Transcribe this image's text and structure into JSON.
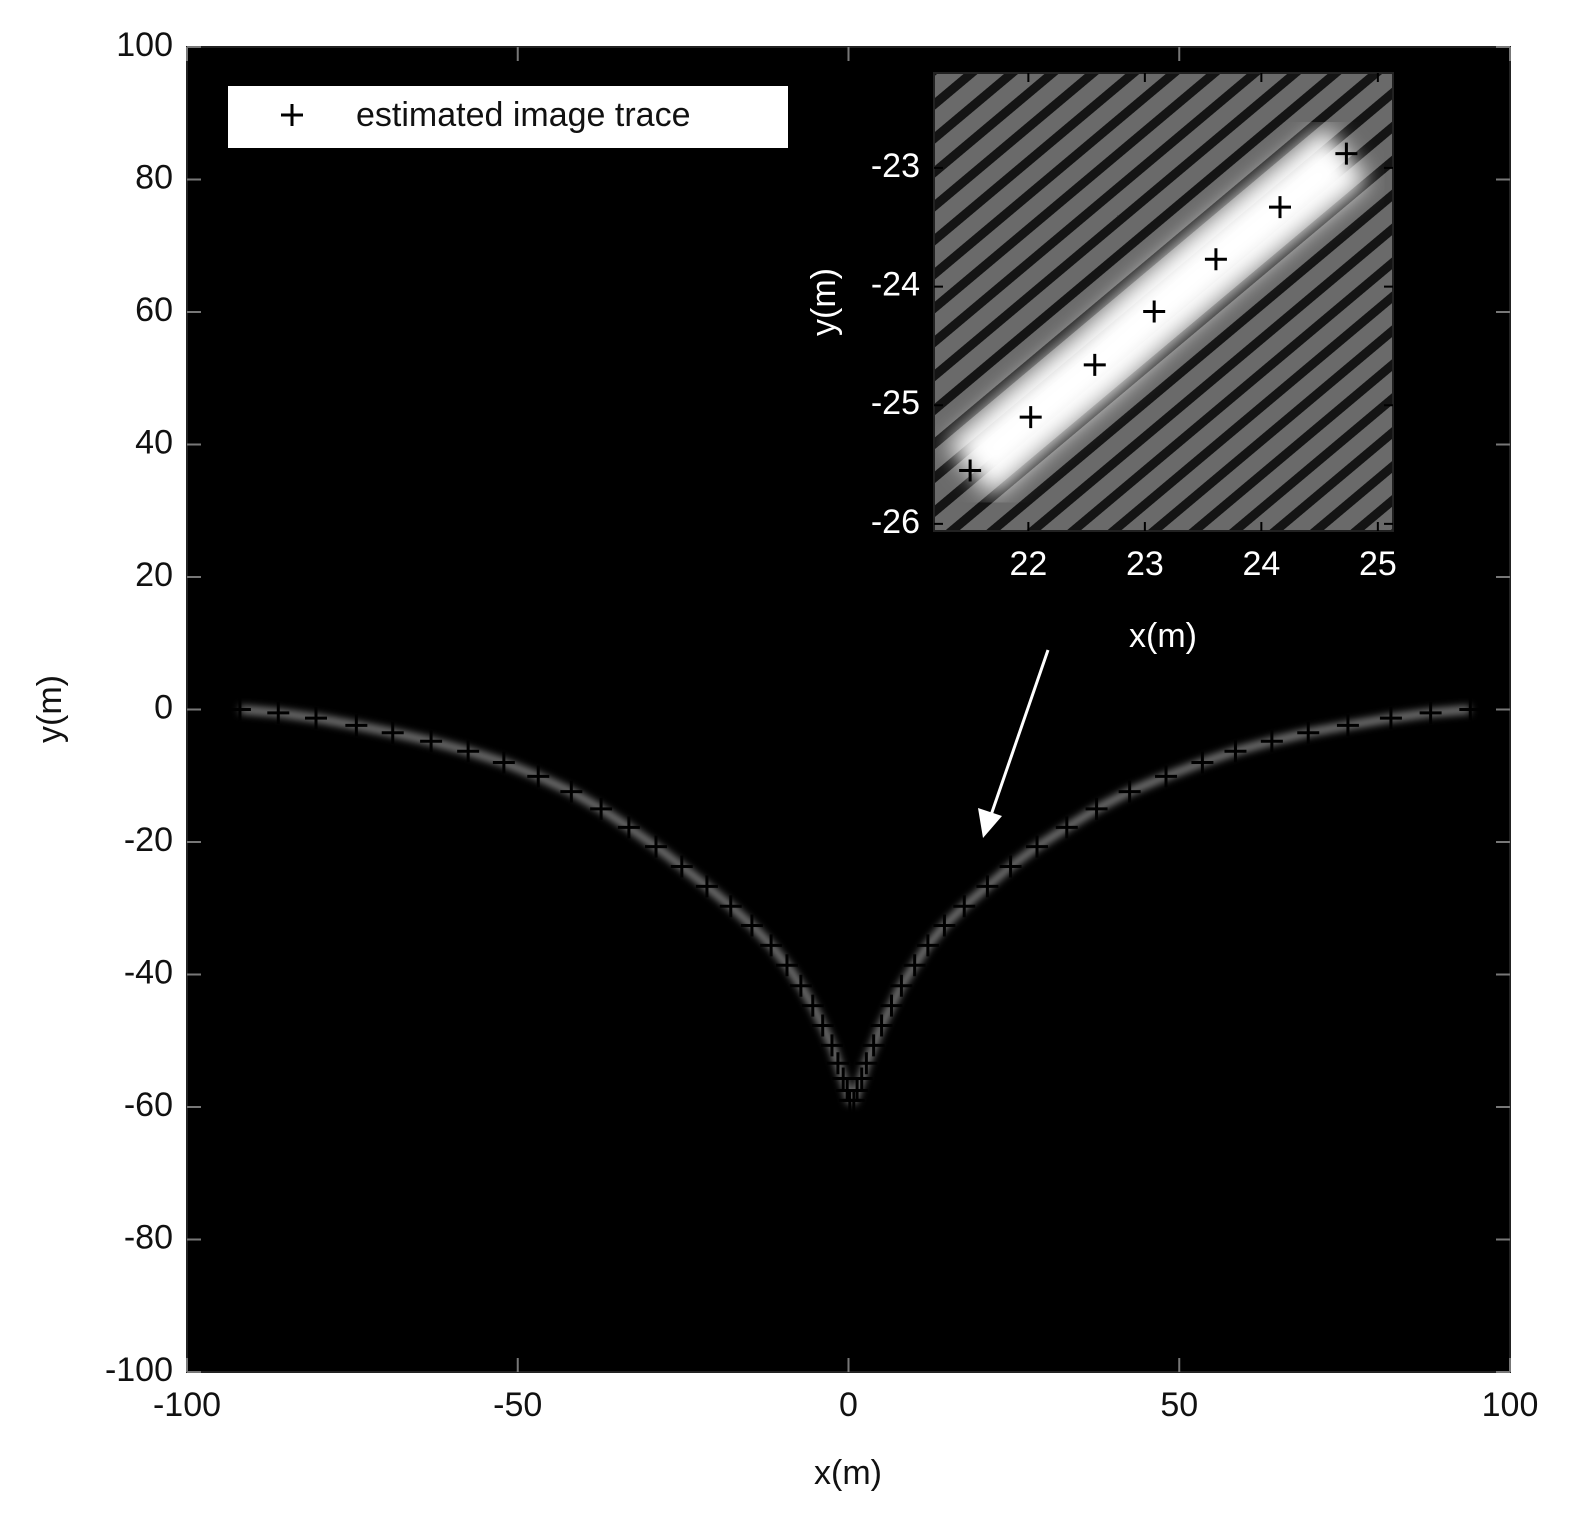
{
  "chart_data": [
    {
      "type": "scatter",
      "xlabel": "x(m)",
      "ylabel": "y(m)",
      "xlim": [
        -100,
        100
      ],
      "ylim": [
        -100,
        100
      ],
      "xticks": [
        -100,
        -50,
        0,
        50,
        100
      ],
      "yticks": [
        -100,
        -80,
        -60,
        -40,
        -20,
        0,
        20,
        40,
        60,
        80,
        100
      ],
      "legend": "upper left",
      "series": [
        {
          "name": "estimated image trace",
          "color": "#000000",
          "marker": "+",
          "x": [
            -92,
            -86.2,
            -80.5,
            -74.4,
            -68.9,
            -63.1,
            -57.5,
            -52.1,
            -46.9,
            -41.9,
            -37.4,
            -33.2,
            -29.1,
            -25.2,
            -21.4,
            -17.8,
            -14.6,
            -11.7,
            -9.3,
            -7.2,
            -5.4,
            -3.9,
            -2.5,
            -1.6,
            -0.8,
            -0.2,
            0.2,
            0.8,
            1.3,
            2,
            2.7,
            3.8,
            5,
            6.5,
            8,
            10,
            12,
            14.5,
            17.5,
            21,
            24.5,
            28.5,
            33,
            37.5,
            42.5,
            48,
            53.5,
            58.5,
            64,
            69.5,
            75.5,
            82,
            88,
            94
          ],
          "y": [
            0,
            -0.5,
            -1.3,
            -2.4,
            -3.5,
            -4.8,
            -6.3,
            -8,
            -10.1,
            -12.4,
            -15,
            -17.8,
            -20.7,
            -23.7,
            -26.7,
            -29.7,
            -32.6,
            -35.6,
            -38.6,
            -41.7,
            -44.7,
            -47.7,
            -50.7,
            -53.4,
            -55.7,
            -57.5,
            -59,
            -59,
            -57.5,
            -55.7,
            -53.4,
            -50.7,
            -47.7,
            -44.7,
            -41.7,
            -38.6,
            -35.6,
            -32.6,
            -29.7,
            -26.7,
            -23.7,
            -20.7,
            -17.8,
            -15,
            -12.4,
            -10.1,
            -8,
            -6.3,
            -4.8,
            -3.5,
            -2.4,
            -1.3,
            -0.5,
            0
          ]
        }
      ]
    },
    {
      "type": "scatter",
      "xlabel": "x(m)",
      "ylabel": "y(m)",
      "xlim": [
        21.19,
        25.13
      ],
      "ylim": [
        -26.06,
        -22.2
      ],
      "xticks": [
        22,
        23,
        24,
        25
      ],
      "yticks": [
        -26,
        -25,
        -24,
        -23
      ],
      "series": [
        {
          "color": "#000000",
          "marker": "+",
          "x": [
            21.5,
            22.02,
            22.57,
            23.08,
            23.61,
            24.16,
            24.73
          ],
          "y": [
            -25.55,
            -25.1,
            -24.66,
            -24.21,
            -23.77,
            -23.33,
            -22.88
          ]
        }
      ]
    }
  ]
}
